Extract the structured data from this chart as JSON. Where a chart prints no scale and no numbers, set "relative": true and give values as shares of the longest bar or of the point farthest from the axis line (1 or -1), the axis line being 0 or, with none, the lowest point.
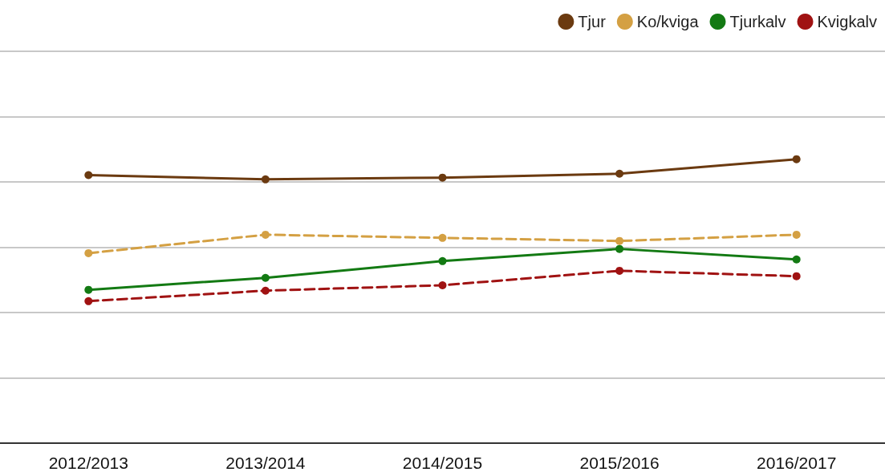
{
  "chart_data": {
    "type": "line",
    "relative": true,
    "categories": [
      "2012/2013",
      "2013/2014",
      "2014/2015",
      "2015/2016",
      "2016/2017"
    ],
    "series": [
      {
        "name": "Tjur",
        "color": "#6b3a10",
        "line_style": "solid",
        "values": [
          0.944,
          0.929,
          0.935,
          0.949,
          1
        ]
      },
      {
        "name": "Ko/kviga",
        "color": "#d4a043",
        "line_style": "dashed",
        "values": [
          0.669,
          0.734,
          0.723,
          0.712,
          0.734
        ]
      },
      {
        "name": "Tjurkalv",
        "color": "#137a13",
        "line_style": "solid",
        "values": [
          0.54,
          0.582,
          0.641,
          0.684,
          0.647
        ]
      },
      {
        "name": "Kvigkalv",
        "color": "#a01212",
        "line_style": "dashed",
        "values": [
          0.5,
          0.537,
          0.556,
          0.607,
          0.588
        ]
      }
    ],
    "grid": "y",
    "legend": "top right",
    "marker": "circle"
  }
}
